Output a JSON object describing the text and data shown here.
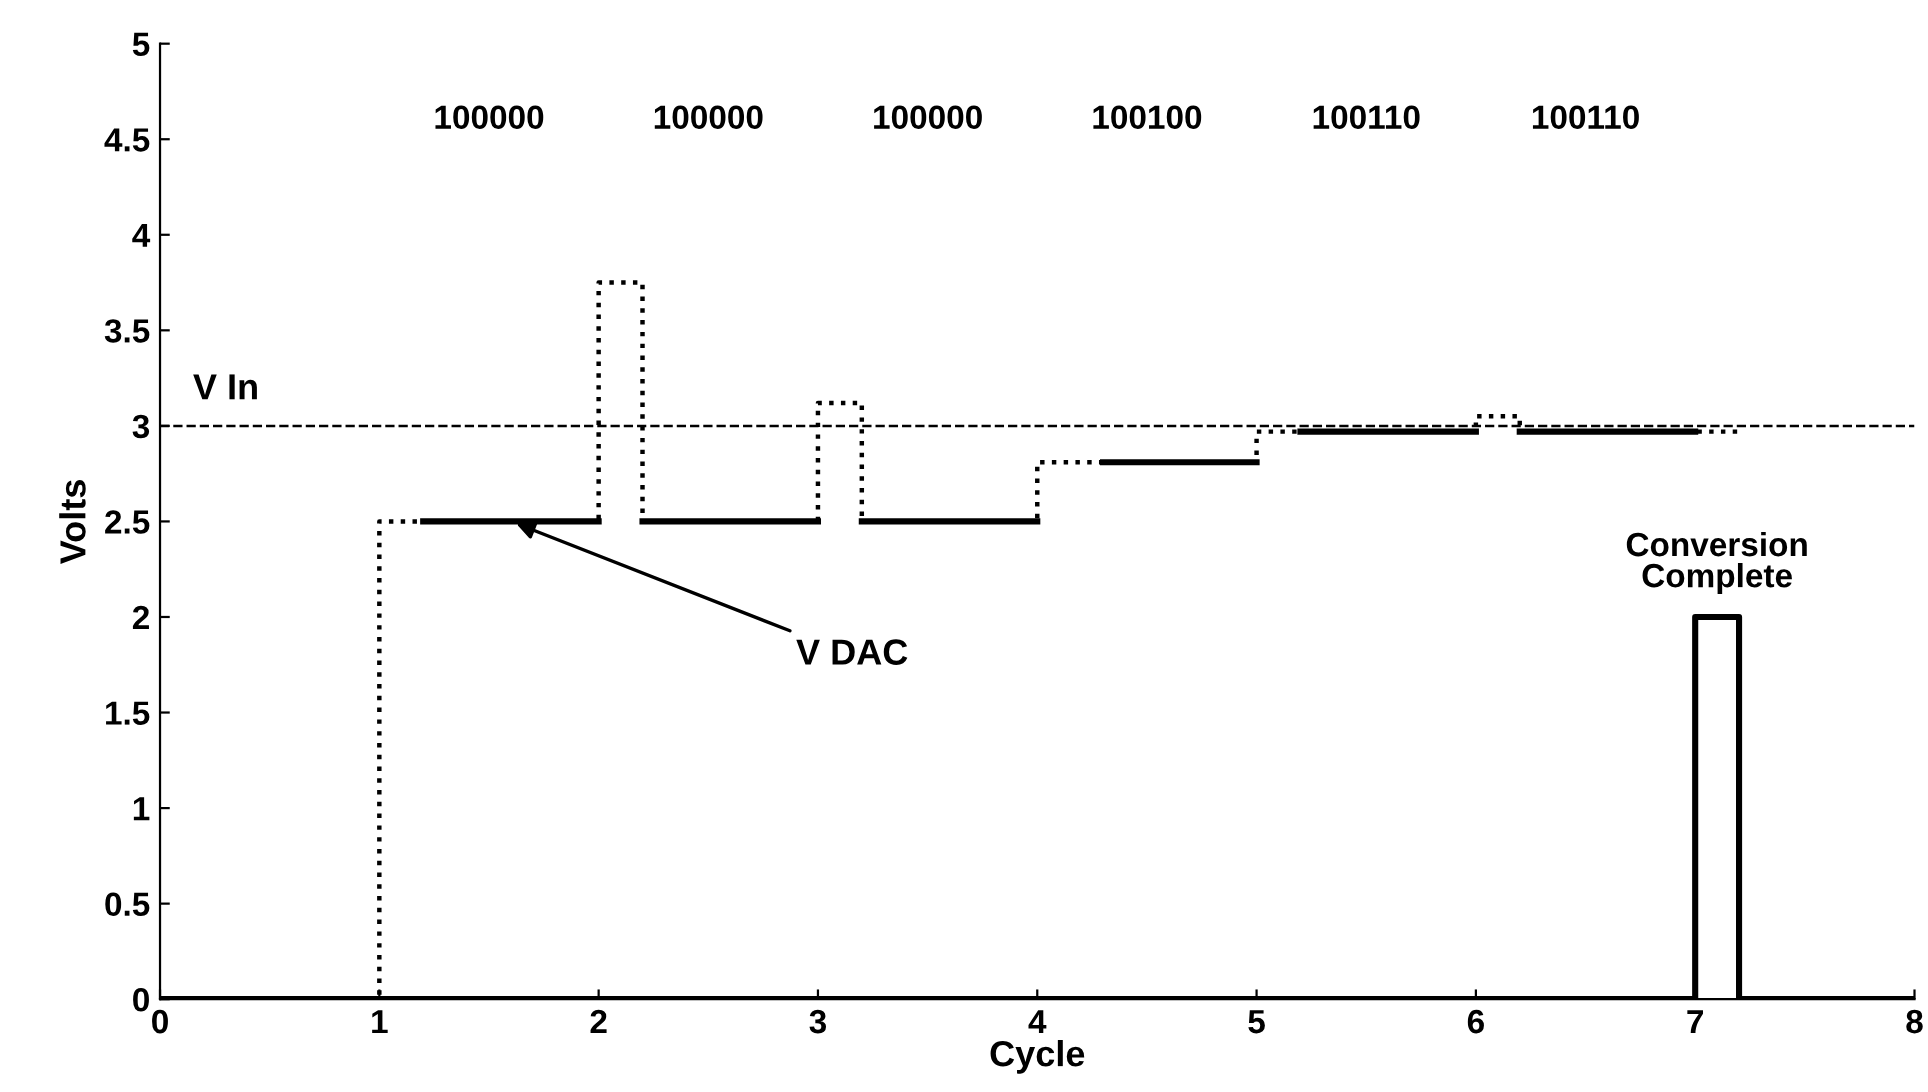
{
  "chart_data": {
    "type": "line",
    "xlabel": "Cycle",
    "ylabel": "Volts",
    "series": [
      {
        "color": "#000000",
        "line_style": "dotted",
        "x": [
          0,
          1,
          1,
          2,
          2,
          2.2,
          2.2,
          3,
          3,
          3.2,
          3.2,
          4,
          4,
          5,
          5,
          6,
          6,
          6.2,
          6.2,
          7.2
        ],
        "values": [
          0,
          0,
          2.5,
          2.5,
          3.75,
          3.75,
          2.5,
          2.5,
          3.12,
          3.12,
          2.5,
          2.5,
          2.81,
          2.81,
          2.97,
          2.97,
          3.05,
          3.05,
          2.97,
          2.97
        ]
      },
      {
        "color": "#000000",
        "line_style": "solid",
        "x": [
          1.2,
          2
        ],
        "values": [
          2.5,
          2.5
        ]
      },
      {
        "color": "#000000",
        "line_style": "solid",
        "x": [
          2.2,
          3
        ],
        "values": [
          2.5,
          2.5
        ]
      },
      {
        "color": "#000000",
        "line_style": "solid",
        "x": [
          3.2,
          4
        ],
        "values": [
          2.5,
          2.5
        ]
      },
      {
        "color": "#000000",
        "line_style": "solid",
        "x": [
          4.3,
          5
        ],
        "values": [
          2.81,
          2.81
        ]
      },
      {
        "color": "#000000",
        "line_style": "solid",
        "x": [
          5.2,
          6
        ],
        "values": [
          2.97,
          2.97
        ]
      },
      {
        "color": "#000000",
        "line_style": "solid",
        "x": [
          6.2,
          7
        ],
        "values": [
          2.97,
          2.97
        ]
      },
      {
        "color": "#000000",
        "line_style": "solid",
        "x": [
          0,
          7,
          7,
          7.2,
          7.2,
          8
        ],
        "values": [
          0,
          0,
          2,
          2,
          0,
          0
        ]
      }
    ],
    "ref_lines": [
      {
        "axis": "y",
        "value": 3,
        "label": "V In",
        "line_style": "dashed",
        "color": "#000000"
      }
    ],
    "annotations": [
      "100000",
      "100000",
      "100000",
      "100100",
      "100110",
      "100110",
      {
        "text": "V DAC",
        "x": 1.6,
        "y": 2.5
      },
      {
        "text": "Conversion\nComplete",
        "x": 7.1,
        "y": 2
      }
    ],
    "xlim": [
      0,
      8
    ],
    "ylim": [
      0,
      5
    ],
    "xticks": [
      0,
      1,
      2,
      3,
      4,
      5,
      6,
      7,
      8
    ],
    "yticks": [
      0,
      0.5,
      1,
      1.5,
      2,
      2.5,
      3,
      3.5,
      4,
      4.5,
      5
    ],
    "grid": false,
    "legend": false,
    "marker": "none"
  }
}
